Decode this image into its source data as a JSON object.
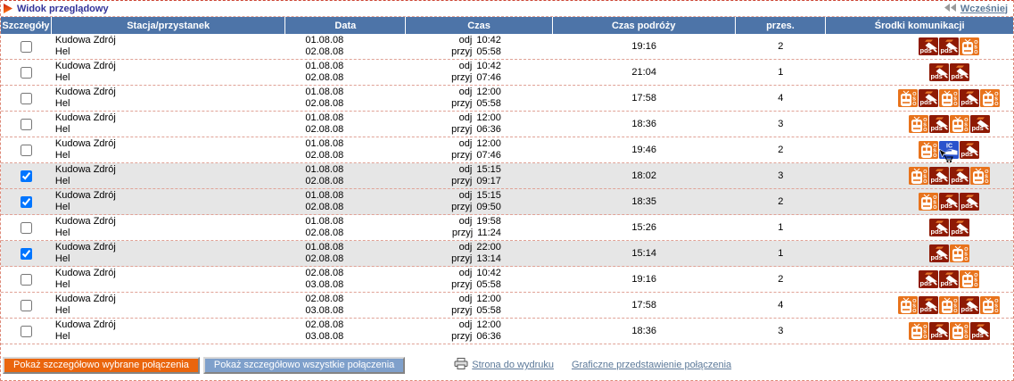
{
  "page": {
    "title": "Widok przeglądowy",
    "earlier_label": "Wcześniej"
  },
  "table": {
    "headers": [
      "Szczegóły",
      "Stacja/przystanek",
      "Data",
      "Czas",
      "Czas podróży",
      "przes.",
      "Środki komunikacji"
    ],
    "dep_label": "odj",
    "arr_label": "przyj",
    "rows": [
      {
        "checked": false,
        "selected": false,
        "from": "Kudowa Zdrój",
        "to": "Hel",
        "date_dep": "01.08.08",
        "date_arr": "02.08.08",
        "dep_time": "10:42",
        "arr_time": "05:58",
        "duration": "19:16",
        "changes": "2",
        "icons": [
          "pds",
          "pds",
          "oso"
        ],
        "cursor_icon_index": null
      },
      {
        "checked": false,
        "selected": false,
        "from": "Kudowa Zdrój",
        "to": "Hel",
        "date_dep": "01.08.08",
        "date_arr": "02.08.08",
        "dep_time": "10:42",
        "arr_time": "07:46",
        "duration": "21:04",
        "changes": "1",
        "icons": [
          "pds",
          "pds"
        ],
        "cursor_icon_index": null
      },
      {
        "checked": false,
        "selected": false,
        "from": "Kudowa Zdrój",
        "to": "Hel",
        "date_dep": "01.08.08",
        "date_arr": "02.08.08",
        "dep_time": "12:00",
        "arr_time": "05:58",
        "duration": "17:58",
        "changes": "4",
        "icons": [
          "oso",
          "pds",
          "oso",
          "pds",
          "oso"
        ],
        "cursor_icon_index": null
      },
      {
        "checked": false,
        "selected": false,
        "from": "Kudowa Zdrój",
        "to": "Hel",
        "date_dep": "01.08.08",
        "date_arr": "02.08.08",
        "dep_time": "12:00",
        "arr_time": "06:36",
        "duration": "18:36",
        "changes": "3",
        "icons": [
          "oso",
          "pds",
          "oso",
          "pds"
        ],
        "cursor_icon_index": null
      },
      {
        "checked": false,
        "selected": false,
        "from": "Kudowa Zdrój",
        "to": "Hel",
        "date_dep": "01.08.08",
        "date_arr": "02.08.08",
        "dep_time": "12:00",
        "arr_time": "07:46",
        "duration": "19:46",
        "changes": "2",
        "icons": [
          "oso",
          "ic",
          "pds"
        ],
        "cursor_icon_index": 1
      },
      {
        "checked": true,
        "selected": true,
        "from": "Kudowa Zdrój",
        "to": "Hel",
        "date_dep": "01.08.08",
        "date_arr": "02.08.08",
        "dep_time": "15:15",
        "arr_time": "09:17",
        "duration": "18:02",
        "changes": "3",
        "icons": [
          "oso",
          "pds",
          "pds",
          "oso"
        ],
        "cursor_icon_index": null
      },
      {
        "checked": true,
        "selected": true,
        "from": "Kudowa Zdrój",
        "to": "Hel",
        "date_dep": "01.08.08",
        "date_arr": "02.08.08",
        "dep_time": "15:15",
        "arr_time": "09:50",
        "duration": "18:35",
        "changes": "2",
        "icons": [
          "oso",
          "pds",
          "pds"
        ],
        "cursor_icon_index": null
      },
      {
        "checked": false,
        "selected": false,
        "from": "Kudowa Zdrój",
        "to": "Hel",
        "date_dep": "01.08.08",
        "date_arr": "02.08.08",
        "dep_time": "19:58",
        "arr_time": "11:24",
        "duration": "15:26",
        "changes": "1",
        "icons": [
          "pds",
          "pds"
        ],
        "cursor_icon_index": null
      },
      {
        "checked": true,
        "selected": true,
        "from": "Kudowa Zdrój",
        "to": "Hel",
        "date_dep": "01.08.08",
        "date_arr": "02.08.08",
        "dep_time": "22:00",
        "arr_time": "13:14",
        "duration": "15:14",
        "changes": "1",
        "icons": [
          "pds",
          "oso"
        ],
        "cursor_icon_index": null
      },
      {
        "checked": false,
        "selected": false,
        "from": "Kudowa Zdrój",
        "to": "Hel",
        "date_dep": "02.08.08",
        "date_arr": "03.08.08",
        "dep_time": "10:42",
        "arr_time": "05:58",
        "duration": "19:16",
        "changes": "2",
        "icons": [
          "pds",
          "pds",
          "oso"
        ],
        "cursor_icon_index": null
      },
      {
        "checked": false,
        "selected": false,
        "from": "Kudowa Zdrój",
        "to": "Hel",
        "date_dep": "02.08.08",
        "date_arr": "03.08.08",
        "dep_time": "12:00",
        "arr_time": "05:58",
        "duration": "17:58",
        "changes": "4",
        "icons": [
          "oso",
          "pds",
          "oso",
          "pds",
          "oso"
        ],
        "cursor_icon_index": null
      },
      {
        "checked": false,
        "selected": false,
        "from": "Kudowa Zdrój",
        "to": "Hel",
        "date_dep": "02.08.08",
        "date_arr": "03.08.08",
        "dep_time": "12:00",
        "arr_time": "06:36",
        "duration": "18:36",
        "changes": "3",
        "icons": [
          "oso",
          "pds",
          "oso",
          "pds"
        ],
        "cursor_icon_index": null
      }
    ]
  },
  "icon_labels": {
    "pds": "pds",
    "oso": "OSO",
    "ic": "IC"
  },
  "footer": {
    "show_selected_button": "Pokaż szczegółowo wybrane połączenia",
    "show_all_button": "Pokaż szczegółowo wszystkie połączenia",
    "print_link": "Strona do wydruku",
    "graphic_link": "Graficzne przedstawienie połączenia"
  },
  "colors": {
    "header_bar": "#4d74a8",
    "title_text": "#333399",
    "link": "#5c7999",
    "row_separator_dash": "#e0a296",
    "selected_row_bg": "#e6e6e6",
    "button_orange": "#ea650d",
    "button_blue": "#7fa0cb",
    "icon_pds_bg": "#8e1a04",
    "icon_oso_bg": "#e8731c",
    "icon_ic_bg": "#2a52cc"
  }
}
